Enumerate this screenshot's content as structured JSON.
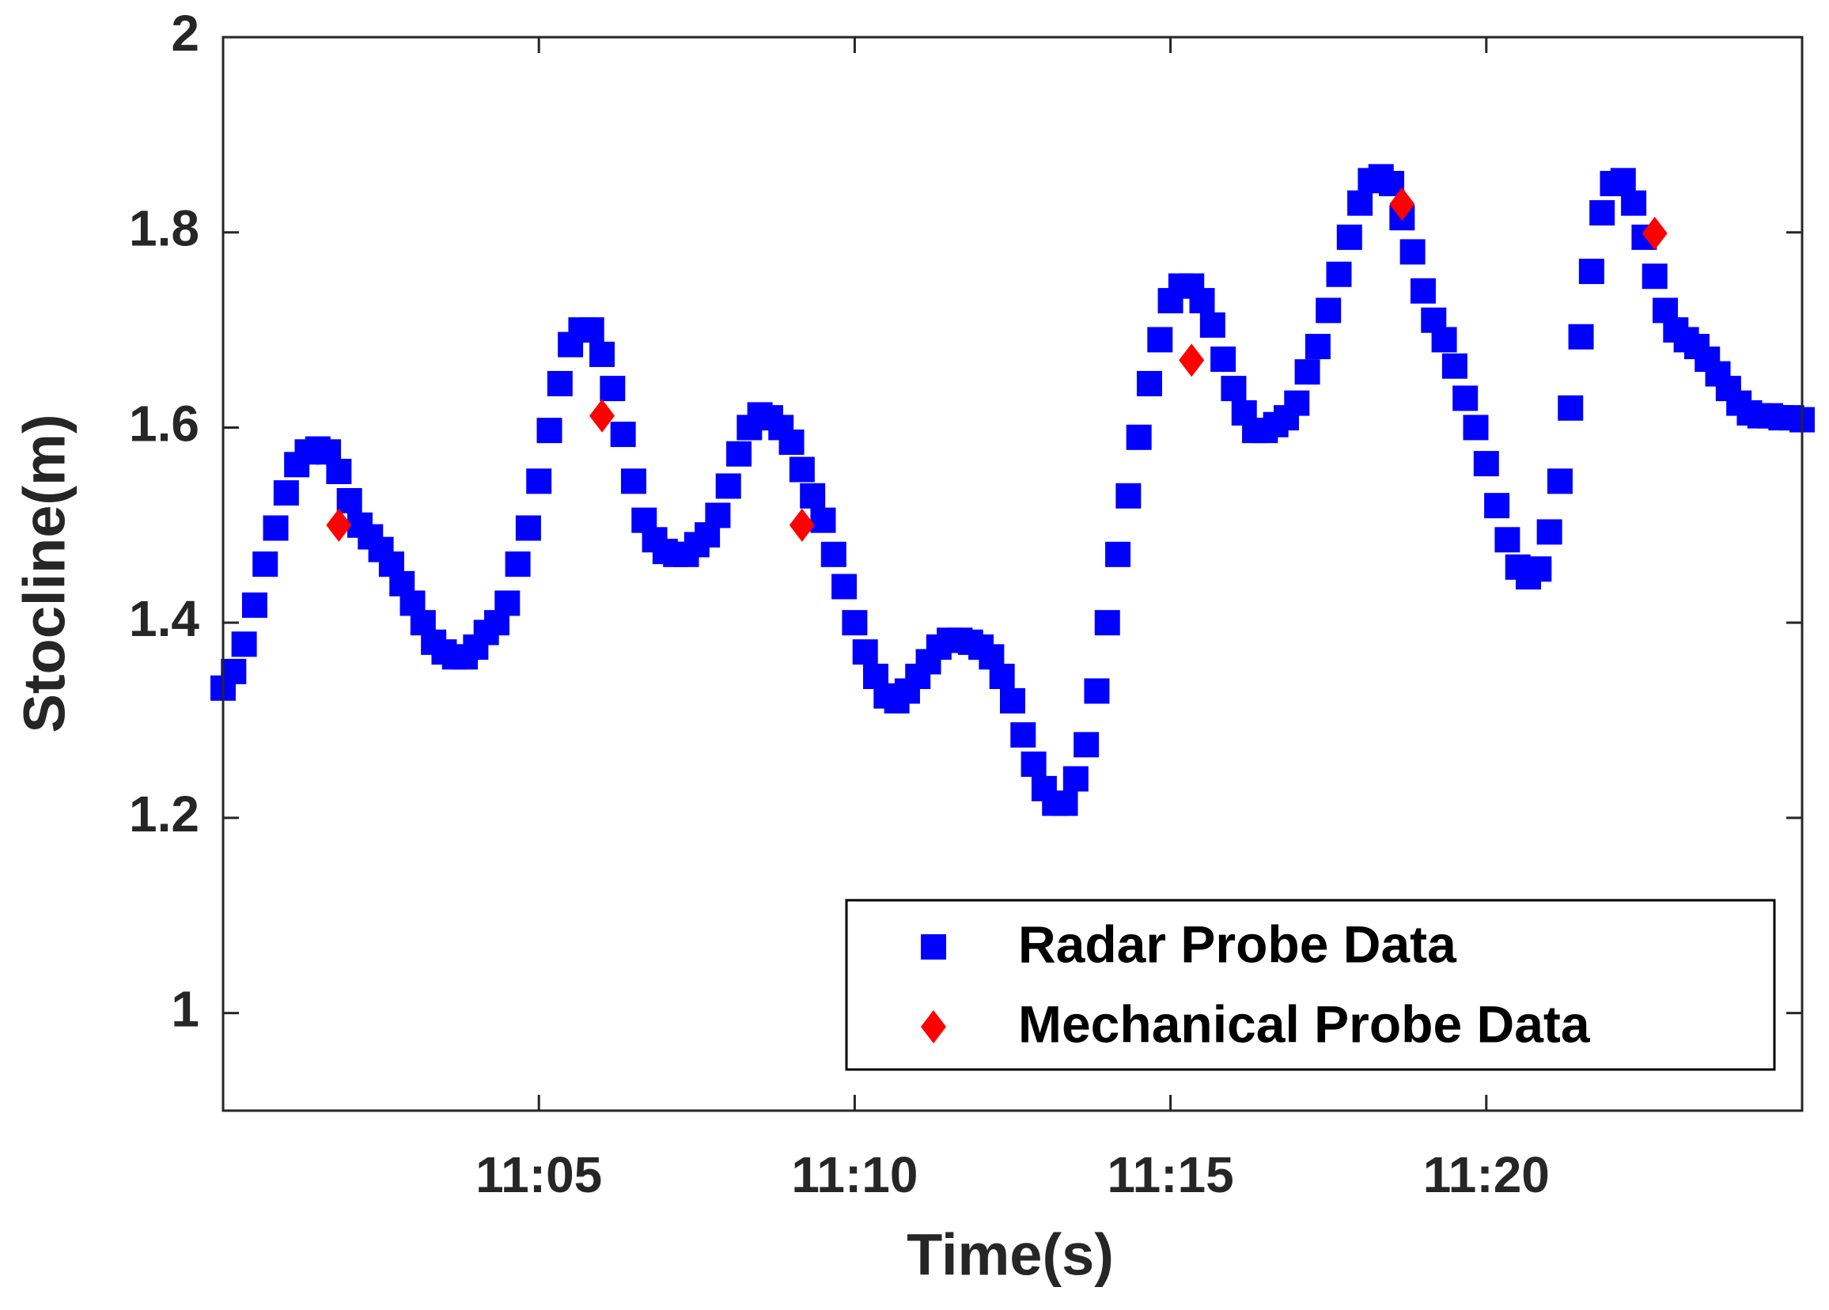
{
  "chart_data": {
    "type": "scatter",
    "xlabel": "Time(s)",
    "ylabel": "Stocline(m)",
    "xlim": [
      0,
      1500
    ],
    "xticks": [
      {
        "value": 300,
        "label": "11:05"
      },
      {
        "value": 600,
        "label": "11:10"
      },
      {
        "value": 900,
        "label": "11:15"
      },
      {
        "value": 1200,
        "label": "11:20"
      }
    ],
    "ylim": [
      0.9,
      2
    ],
    "yticks": [
      1,
      1.2,
      1.4,
      1.6,
      1.8,
      2
    ],
    "grid": false,
    "legend": "lower right",
    "series": [
      {
        "name": "Radar Probe Data",
        "color": "#0000ff",
        "marker": "square",
        "x": [
          0,
          10,
          20,
          30,
          40,
          50,
          60,
          70,
          80,
          90,
          100,
          110,
          120,
          130,
          140,
          150,
          160,
          170,
          180,
          190,
          200,
          210,
          220,
          230,
          240,
          250,
          260,
          270,
          280,
          290,
          300,
          310,
          320,
          330,
          340,
          350,
          360,
          370,
          380,
          390,
          400,
          410,
          420,
          430,
          440,
          450,
          460,
          470,
          480,
          490,
          500,
          510,
          520,
          530,
          540,
          550,
          560,
          570,
          580,
          590,
          600,
          610,
          620,
          630,
          640,
          650,
          660,
          670,
          680,
          690,
          700,
          710,
          720,
          730,
          740,
          750,
          760,
          770,
          780,
          790,
          800,
          810,
          820,
          830,
          840,
          850,
          860,
          870,
          880,
          890,
          900,
          910,
          920,
          930,
          940,
          950,
          960,
          970,
          980,
          990,
          1000,
          1010,
          1020,
          1030,
          1040,
          1050,
          1060,
          1070,
          1080,
          1090,
          1100,
          1110,
          1120,
          1130,
          1140,
          1150,
          1160,
          1170,
          1180,
          1190,
          1200,
          1210,
          1220,
          1230,
          1240,
          1250,
          1260,
          1270,
          1280,
          1290,
          1300,
          1310,
          1320,
          1330,
          1340,
          1350,
          1360,
          1370,
          1380,
          1390,
          1400,
          1410,
          1420,
          1430,
          1440,
          1450,
          1460,
          1470,
          1480,
          1490,
          1500
        ],
        "values": [
          1.333,
          1.35,
          1.378,
          1.418,
          1.46,
          1.497,
          1.533,
          1.562,
          1.575,
          1.578,
          1.575,
          1.555,
          1.525,
          1.5,
          1.488,
          1.475,
          1.46,
          1.44,
          1.42,
          1.4,
          1.38,
          1.37,
          1.365,
          1.365,
          1.375,
          1.39,
          1.4,
          1.42,
          1.46,
          1.497,
          1.545,
          1.597,
          1.645,
          1.685,
          1.7,
          1.7,
          1.675,
          1.64,
          1.593,
          1.545,
          1.505,
          1.485,
          1.473,
          1.47,
          1.47,
          1.48,
          1.49,
          1.51,
          1.54,
          1.573,
          1.6,
          1.613,
          1.61,
          1.6,
          1.585,
          1.557,
          1.53,
          1.505,
          1.47,
          1.437,
          1.4,
          1.37,
          1.345,
          1.325,
          1.32,
          1.33,
          1.345,
          1.36,
          1.375,
          1.382,
          1.382,
          1.38,
          1.375,
          1.365,
          1.345,
          1.32,
          1.285,
          1.255,
          1.23,
          1.215,
          1.215,
          1.24,
          1.275,
          1.33,
          1.4,
          1.47,
          1.53,
          1.59,
          1.645,
          1.69,
          1.73,
          1.745,
          1.745,
          1.73,
          1.705,
          1.67,
          1.64,
          1.615,
          1.597,
          1.597,
          1.603,
          1.61,
          1.625,
          1.657,
          1.683,
          1.72,
          1.757,
          1.795,
          1.83,
          1.853,
          1.857,
          1.85,
          1.815,
          1.78,
          1.74,
          1.71,
          1.69,
          1.663,
          1.63,
          1.6,
          1.563,
          1.52,
          1.485,
          1.457,
          1.447,
          1.455,
          1.493,
          1.545,
          1.62,
          1.693,
          1.76,
          1.82,
          1.85,
          1.853,
          1.83,
          1.795,
          1.755,
          1.72,
          1.7,
          1.69,
          1.683,
          1.67,
          1.655,
          1.64,
          1.625,
          1.615,
          1.612,
          1.612,
          1.61,
          1.61,
          1.608
        ]
      },
      {
        "name": "Mechanical Probe Data",
        "color": "#ff0000",
        "marker": "diamond",
        "x": [
          110,
          360,
          550,
          920,
          1120,
          1360
        ],
        "values": [
          1.5,
          1.612,
          1.5,
          1.669,
          1.829,
          1.799
        ]
      }
    ]
  }
}
